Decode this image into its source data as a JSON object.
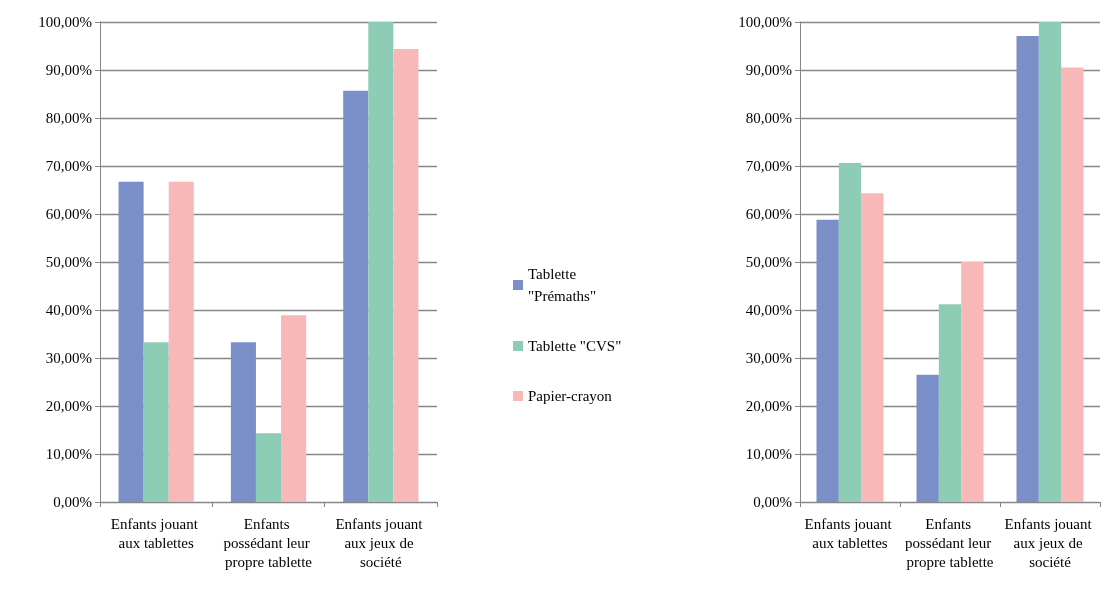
{
  "chart_data": [
    {
      "type": "bar",
      "categories": [
        "Enfants jouant aux tablettes",
        "Enfants possédant leur propre tablette",
        "Enfants jouant aux jeux de société"
      ],
      "series": [
        {
          "name": "Tablette \"Prémaths\"",
          "color": "#7a8ec8",
          "values": [
            66.7,
            33.3,
            85.7
          ]
        },
        {
          "name": "Tablette \"CVS\"",
          "color": "#8ecdb5",
          "values": [
            33.3,
            14.3,
            100
          ]
        },
        {
          "name": "Papier-crayon",
          "color": "#f8b8b8",
          "values": [
            66.7,
            38.9,
            94.4
          ]
        }
      ],
      "ylim": [
        0,
        100
      ],
      "yticks": [
        {
          "value": 0,
          "label": "0,00%"
        },
        {
          "value": 10,
          "label": "10,00%"
        },
        {
          "value": 20,
          "label": "20,00%"
        },
        {
          "value": 30,
          "label": "30,00%"
        },
        {
          "value": 40,
          "label": "40,00%"
        },
        {
          "value": 50,
          "label": "50,00%"
        },
        {
          "value": 60,
          "label": "60,00%"
        },
        {
          "value": 70,
          "label": "70,00%"
        },
        {
          "value": 80,
          "label": "80,00%"
        },
        {
          "value": 90,
          "label": "90,00%"
        },
        {
          "value": 100,
          "label": "100,00%"
        }
      ],
      "grid": "y",
      "legend": "right"
    },
    {
      "type": "bar",
      "categories": [
        "Enfants jouant aux tablettes",
        "Enfants possédant leur propre tablette",
        "Enfants jouant aux jeux de société"
      ],
      "series": [
        {
          "color": "#7a8ec8",
          "values": [
            58.8,
            26.5,
            97.1
          ]
        },
        {
          "color": "#8ecdb5",
          "values": [
            70.6,
            41.2,
            100
          ]
        },
        {
          "color": "#f8b8b8",
          "values": [
            64.3,
            50.0,
            90.5
          ]
        }
      ],
      "ylim": [
        0,
        100
      ],
      "yticks": [
        {
          "value": 0,
          "label": "0,00%"
        },
        {
          "value": 10,
          "label": "10,00%"
        },
        {
          "value": 20,
          "label": "20,00%"
        },
        {
          "value": 30,
          "label": "30,00%"
        },
        {
          "value": 40,
          "label": "40,00%"
        },
        {
          "value": 50,
          "label": "50,00%"
        },
        {
          "value": 60,
          "label": "60,00%"
        },
        {
          "value": 70,
          "label": "70,00%"
        },
        {
          "value": 80,
          "label": "80,00%"
        },
        {
          "value": 90,
          "label": "90,00%"
        },
        {
          "value": 100,
          "label": "100,00%"
        }
      ],
      "grid": "y"
    }
  ]
}
